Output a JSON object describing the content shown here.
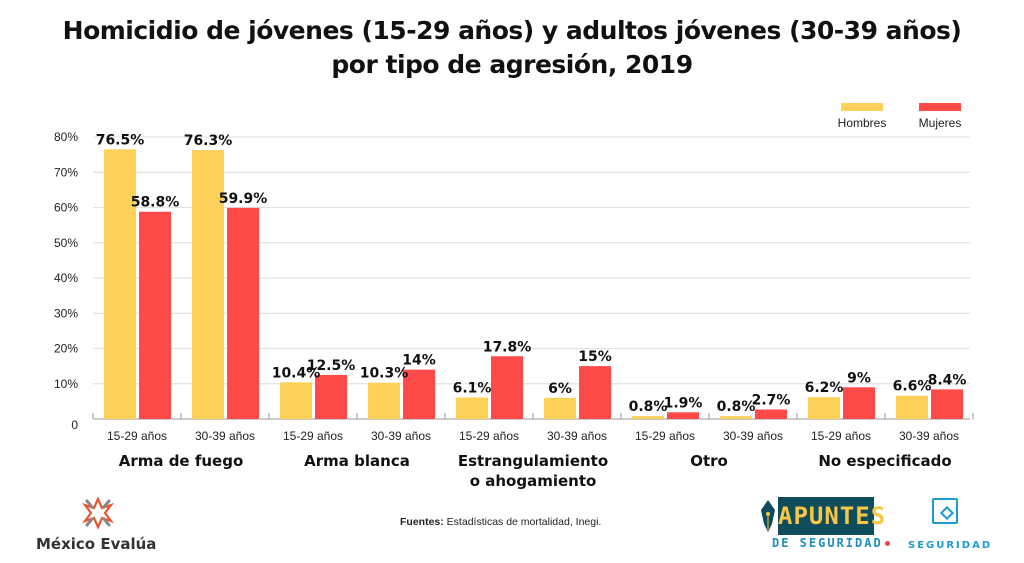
{
  "chart_data": {
    "type": "bar",
    "title": "Homicidio de jóvenes (15-29 años) y adultos jóvenes (30-39 años)",
    "title_line2": "por tipo de agresión, 2019",
    "xlabel": "",
    "ylabel": "",
    "ylim": [
      0,
      80
    ],
    "yticks": [
      0,
      10,
      20,
      30,
      40,
      50,
      60,
      70,
      80
    ],
    "ytick_labels": [
      "0",
      "10%",
      "20%",
      "30%",
      "40%",
      "50%",
      "60%",
      "70%",
      "80%"
    ],
    "grid": true,
    "legend_position": "top-right",
    "groups": [
      {
        "label": "Arma de fuego",
        "label_lines": [
          "Arma de fuego"
        ]
      },
      {
        "label": "Arma blanca",
        "label_lines": [
          "Arma blanca"
        ]
      },
      {
        "label": "Estrangulamiento o ahogamiento",
        "label_lines": [
          "Estrangulamiento",
          "o ahogamiento"
        ]
      },
      {
        "label": "Otro",
        "label_lines": [
          "Otro"
        ]
      },
      {
        "label": "No especificado",
        "label_lines": [
          "No especificado"
        ]
      }
    ],
    "subcategories": [
      "15-29 años",
      "30-39 años"
    ],
    "categories": [
      "Arma de fuego 15-29 años",
      "Arma de fuego 30-39 años",
      "Arma blanca 15-29 años",
      "Arma blanca 30-39 años",
      "Estrangulamiento o ahogamiento 15-29 años",
      "Estrangulamiento o ahogamiento 30-39 años",
      "Otro 15-29 años",
      "Otro 30-39 años",
      "No especificado 15-29 años",
      "No especificado 30-39 años"
    ],
    "series": [
      {
        "name": "Hombres",
        "color": "#FDD05A",
        "values": [
          76.5,
          76.3,
          10.4,
          10.3,
          6.1,
          6.0,
          0.8,
          0.8,
          6.2,
          6.6
        ],
        "labels": [
          "76.5%",
          "76.3%",
          "10.4%",
          "10.3%",
          "6.1%",
          "6%",
          "0.8%",
          "0.8%",
          "6.2%",
          "6.6%"
        ]
      },
      {
        "name": "Mujeres",
        "color": "#FF4A4A",
        "values": [
          58.8,
          59.9,
          12.5,
          14.0,
          17.8,
          15.0,
          1.9,
          2.7,
          9.0,
          8.4
        ],
        "labels": [
          "58.8%",
          "59.9%",
          "12.5%",
          "14%",
          "17.8%",
          "15%",
          "1.9%",
          "2.7%",
          "9%",
          "8.4%"
        ]
      }
    ]
  },
  "source": {
    "prefix": "Fuentes:",
    "text": " Estadísticas de mortalidad, Inegi."
  },
  "logos": {
    "mexico_evalua": "México Evalúa",
    "apuntes_main": "APUNTES",
    "apuntes_sub": "DE SEGURIDAD",
    "seguridad": "SEGURIDAD"
  }
}
